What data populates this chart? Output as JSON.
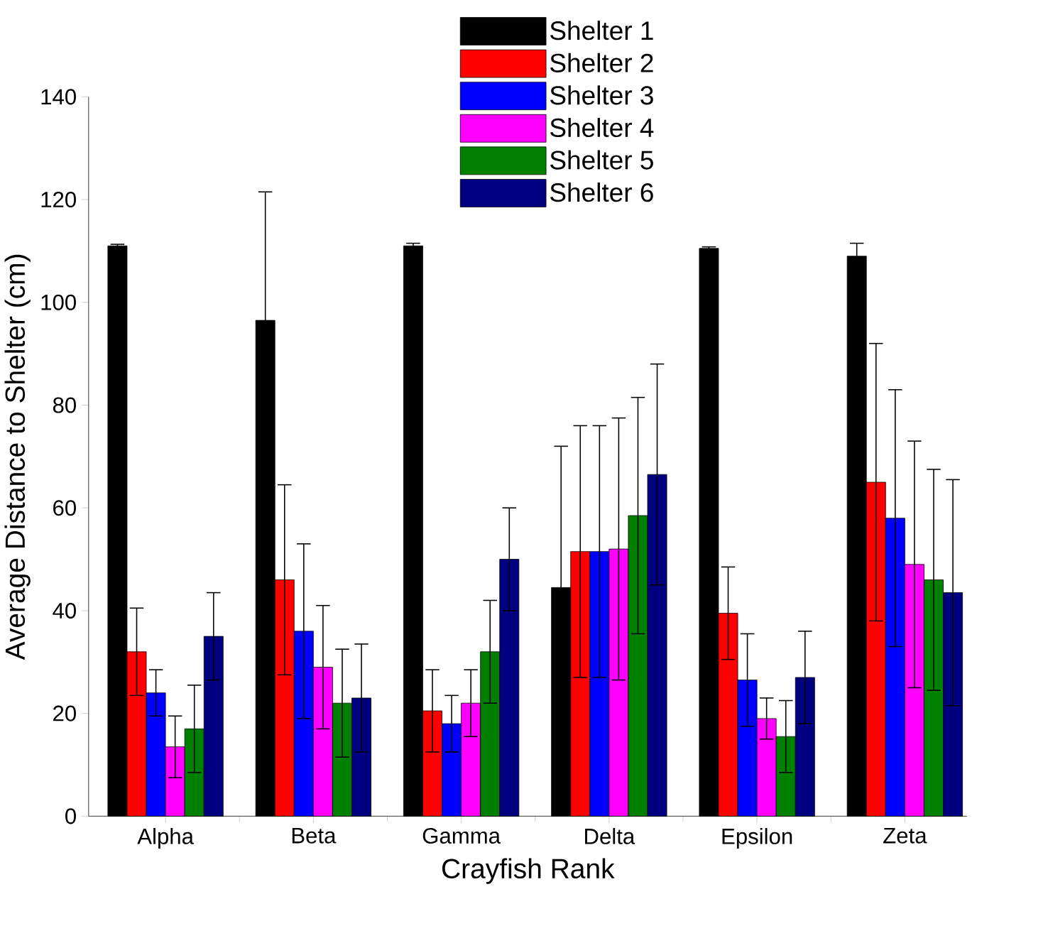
{
  "chart_data": {
    "type": "bar",
    "xlabel": "Crayfish Rank",
    "ylabel": "Average Distance to Shelter (cm)",
    "categories": [
      "Alpha",
      "Beta",
      "Gamma",
      "Delta",
      "Epsilon",
      "Zeta"
    ],
    "series": [
      {
        "name": "Shelter 1",
        "color": "#000000",
        "values": [
          111,
          96.5,
          111,
          44.5,
          110.5,
          109
        ],
        "errors": [
          0.3,
          25,
          0.5,
          27.5,
          0.3,
          2.5
        ]
      },
      {
        "name": "Shelter 2",
        "color": "#ff0000",
        "values": [
          32,
          46,
          20.5,
          51.5,
          39.5,
          65
        ],
        "errors": [
          8.5,
          18.5,
          8,
          24.5,
          9,
          27
        ]
      },
      {
        "name": "Shelter 3",
        "color": "#0000ff",
        "values": [
          24,
          36,
          18,
          51.5,
          26.5,
          58
        ],
        "errors": [
          4.5,
          17,
          5.5,
          24.5,
          9,
          25
        ]
      },
      {
        "name": "Shelter 4",
        "color": "#ff00ff",
        "values": [
          13.5,
          29,
          22,
          52,
          19,
          49
        ],
        "errors": [
          6,
          12,
          6.5,
          25.5,
          4,
          24
        ]
      },
      {
        "name": "Shelter 5",
        "color": "#008000",
        "values": [
          17,
          22,
          32,
          58.5,
          15.5,
          46
        ],
        "errors": [
          8.5,
          10.5,
          10,
          23,
          7,
          21.5
        ]
      },
      {
        "name": "Shelter 6",
        "color": "#000080",
        "values": [
          35,
          23,
          50,
          66.5,
          27,
          43.5
        ],
        "errors": [
          8.5,
          10.5,
          10,
          21.5,
          9,
          22
        ]
      }
    ],
    "ylim": [
      0,
      140
    ],
    "yticks": [
      0,
      20,
      40,
      60,
      80,
      100,
      120,
      140
    ],
    "grid": false,
    "legend": "top"
  }
}
